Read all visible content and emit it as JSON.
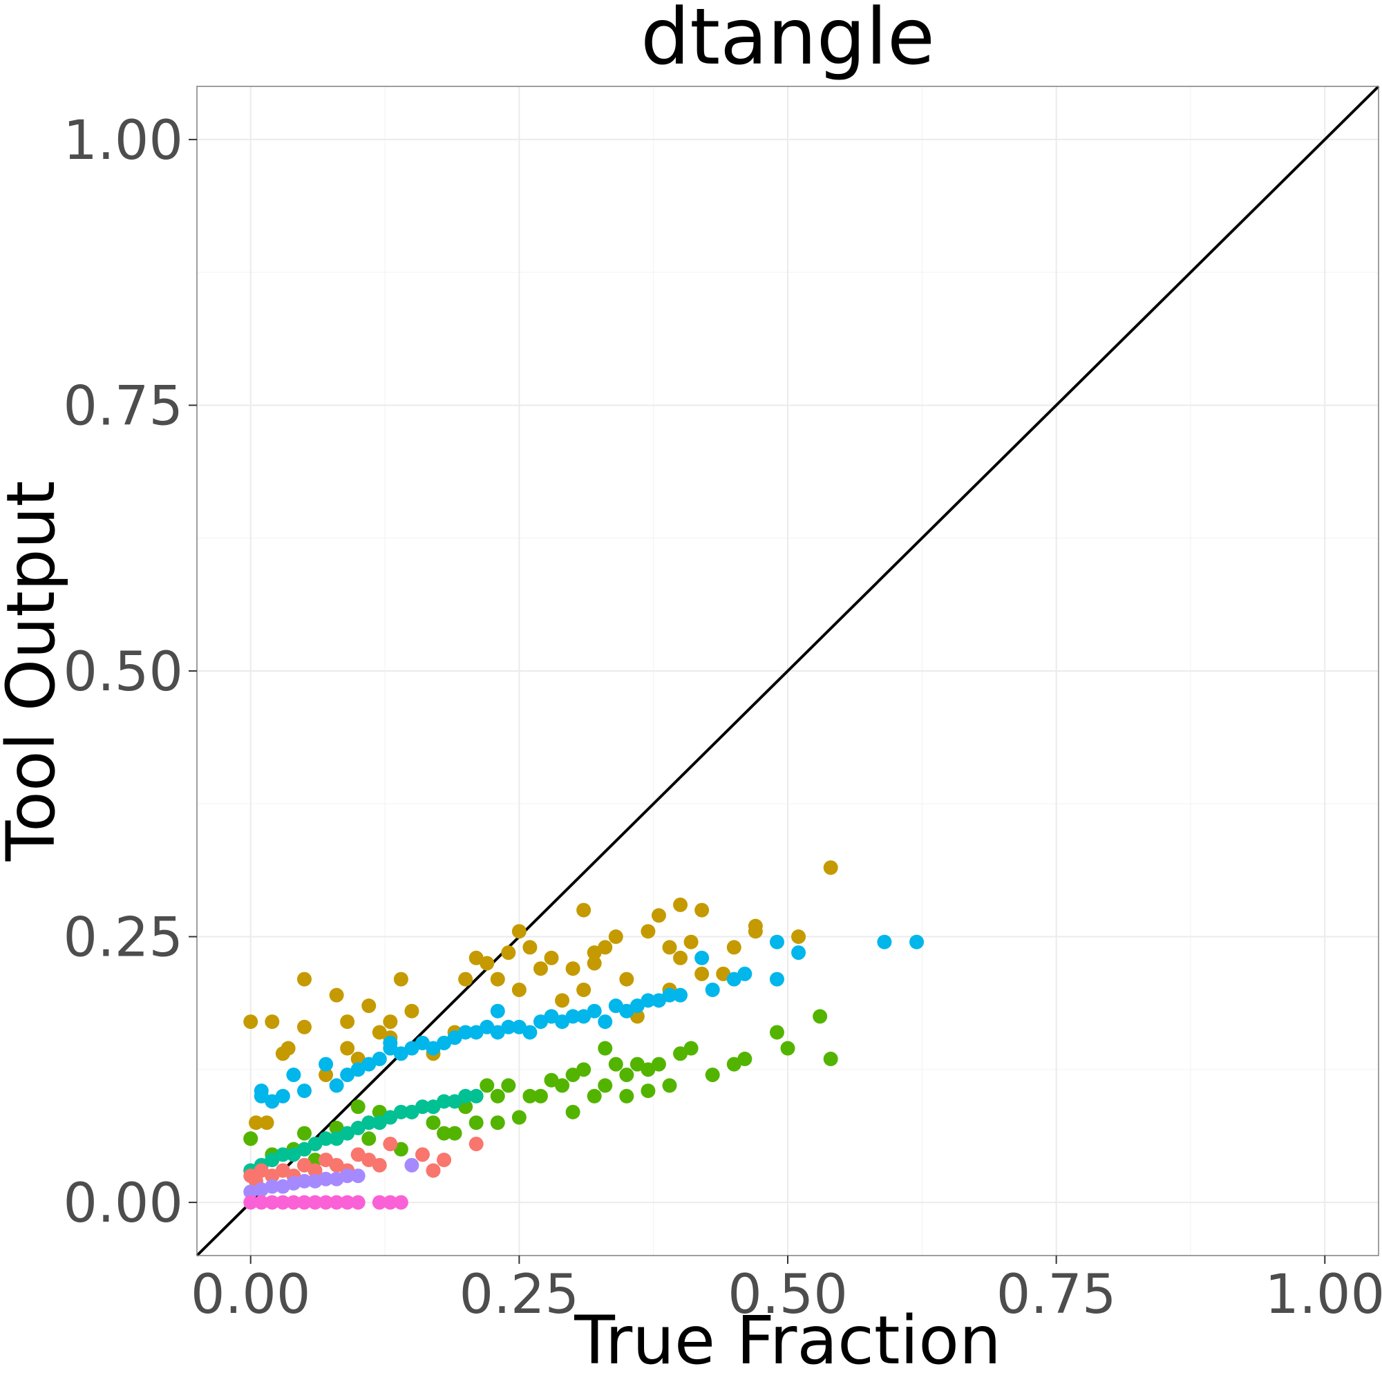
{
  "chart_data": {
    "type": "scatter",
    "title": "dtangle",
    "xlabel": "True Fraction",
    "ylabel": "Tool Output",
    "xlim": [
      -0.05,
      1.05
    ],
    "ylim": [
      -0.05,
      1.05
    ],
    "x_ticks": [
      "0.00",
      "0.25",
      "0.50",
      "0.75",
      "1.00"
    ],
    "y_ticks": [
      "0.00",
      "0.25",
      "0.50",
      "0.75",
      "1.00"
    ],
    "x_tick_values": [
      0,
      0.25,
      0.5,
      0.75,
      1.0
    ],
    "y_tick_values": [
      0,
      0.25,
      0.5,
      0.75,
      1.0
    ],
    "grid": true,
    "legend": "none",
    "reference_line": {
      "slope": 1,
      "intercept": 0,
      "color": "#000000"
    },
    "series": [
      {
        "color": "#C49A00",
        "points": [
          [
            0.0,
            0.17
          ],
          [
            0.02,
            0.17
          ],
          [
            0.0,
            0.06
          ],
          [
            0.005,
            0.075
          ],
          [
            0.015,
            0.075
          ],
          [
            0.03,
            0.14
          ],
          [
            0.035,
            0.145
          ],
          [
            0.05,
            0.21
          ],
          [
            0.05,
            0.165
          ],
          [
            0.07,
            0.12
          ],
          [
            0.08,
            0.195
          ],
          [
            0.09,
            0.145
          ],
          [
            0.09,
            0.17
          ],
          [
            0.1,
            0.135
          ],
          [
            0.11,
            0.185
          ],
          [
            0.12,
            0.16
          ],
          [
            0.13,
            0.17
          ],
          [
            0.13,
            0.155
          ],
          [
            0.14,
            0.21
          ],
          [
            0.15,
            0.18
          ],
          [
            0.17,
            0.14
          ],
          [
            0.19,
            0.16
          ],
          [
            0.2,
            0.21
          ],
          [
            0.21,
            0.23
          ],
          [
            0.22,
            0.225
          ],
          [
            0.23,
            0.21
          ],
          [
            0.24,
            0.235
          ],
          [
            0.25,
            0.255
          ],
          [
            0.25,
            0.2
          ],
          [
            0.26,
            0.24
          ],
          [
            0.27,
            0.22
          ],
          [
            0.28,
            0.175
          ],
          [
            0.28,
            0.23
          ],
          [
            0.29,
            0.19
          ],
          [
            0.3,
            0.22
          ],
          [
            0.31,
            0.275
          ],
          [
            0.31,
            0.2
          ],
          [
            0.32,
            0.235
          ],
          [
            0.32,
            0.225
          ],
          [
            0.33,
            0.24
          ],
          [
            0.34,
            0.25
          ],
          [
            0.35,
            0.21
          ],
          [
            0.36,
            0.175
          ],
          [
            0.37,
            0.255
          ],
          [
            0.38,
            0.27
          ],
          [
            0.39,
            0.2
          ],
          [
            0.39,
            0.24
          ],
          [
            0.4,
            0.23
          ],
          [
            0.4,
            0.28
          ],
          [
            0.41,
            0.245
          ],
          [
            0.42,
            0.215
          ],
          [
            0.42,
            0.275
          ],
          [
            0.44,
            0.215
          ],
          [
            0.45,
            0.24
          ],
          [
            0.47,
            0.26
          ],
          [
            0.47,
            0.255
          ],
          [
            0.51,
            0.25
          ],
          [
            0.54,
            0.315
          ]
        ]
      },
      {
        "color": "#00B6EB",
        "points": [
          [
            0.01,
            0.105
          ],
          [
            0.01,
            0.1
          ],
          [
            0.02,
            0.095
          ],
          [
            0.03,
            0.1
          ],
          [
            0.04,
            0.12
          ],
          [
            0.05,
            0.105
          ],
          [
            0.07,
            0.13
          ],
          [
            0.08,
            0.11
          ],
          [
            0.09,
            0.12
          ],
          [
            0.1,
            0.125
          ],
          [
            0.11,
            0.13
          ],
          [
            0.12,
            0.135
          ],
          [
            0.13,
            0.15
          ],
          [
            0.13,
            0.145
          ],
          [
            0.14,
            0.14
          ],
          [
            0.15,
            0.145
          ],
          [
            0.16,
            0.15
          ],
          [
            0.17,
            0.145
          ],
          [
            0.18,
            0.15
          ],
          [
            0.19,
            0.155
          ],
          [
            0.2,
            0.16
          ],
          [
            0.21,
            0.16
          ],
          [
            0.22,
            0.165
          ],
          [
            0.23,
            0.18
          ],
          [
            0.23,
            0.16
          ],
          [
            0.24,
            0.165
          ],
          [
            0.25,
            0.165
          ],
          [
            0.26,
            0.16
          ],
          [
            0.27,
            0.17
          ],
          [
            0.28,
            0.175
          ],
          [
            0.29,
            0.17
          ],
          [
            0.3,
            0.175
          ],
          [
            0.31,
            0.175
          ],
          [
            0.32,
            0.18
          ],
          [
            0.33,
            0.17
          ],
          [
            0.34,
            0.185
          ],
          [
            0.35,
            0.18
          ],
          [
            0.36,
            0.185
          ],
          [
            0.37,
            0.19
          ],
          [
            0.38,
            0.19
          ],
          [
            0.39,
            0.195
          ],
          [
            0.4,
            0.195
          ],
          [
            0.42,
            0.23
          ],
          [
            0.43,
            0.2
          ],
          [
            0.45,
            0.21
          ],
          [
            0.46,
            0.215
          ],
          [
            0.49,
            0.245
          ],
          [
            0.49,
            0.21
          ],
          [
            0.51,
            0.235
          ],
          [
            0.59,
            0.245
          ],
          [
            0.62,
            0.245
          ]
        ]
      },
      {
        "color": "#53B400",
        "points": [
          [
            0.0,
            0.06
          ],
          [
            0.02,
            0.045
          ],
          [
            0.04,
            0.05
          ],
          [
            0.05,
            0.065
          ],
          [
            0.06,
            0.04
          ],
          [
            0.08,
            0.07
          ],
          [
            0.1,
            0.09
          ],
          [
            0.11,
            0.06
          ],
          [
            0.12,
            0.085
          ],
          [
            0.14,
            0.05
          ],
          [
            0.15,
            0.085
          ],
          [
            0.17,
            0.075
          ],
          [
            0.18,
            0.065
          ],
          [
            0.19,
            0.065
          ],
          [
            0.2,
            0.09
          ],
          [
            0.21,
            0.075
          ],
          [
            0.22,
            0.11
          ],
          [
            0.23,
            0.1
          ],
          [
            0.23,
            0.075
          ],
          [
            0.24,
            0.11
          ],
          [
            0.25,
            0.08
          ],
          [
            0.26,
            0.1
          ],
          [
            0.27,
            0.1
          ],
          [
            0.28,
            0.115
          ],
          [
            0.29,
            0.11
          ],
          [
            0.3,
            0.085
          ],
          [
            0.3,
            0.12
          ],
          [
            0.31,
            0.125
          ],
          [
            0.32,
            0.1
          ],
          [
            0.33,
            0.145
          ],
          [
            0.33,
            0.11
          ],
          [
            0.34,
            0.13
          ],
          [
            0.35,
            0.1
          ],
          [
            0.35,
            0.12
          ],
          [
            0.36,
            0.13
          ],
          [
            0.37,
            0.105
          ],
          [
            0.37,
            0.125
          ],
          [
            0.38,
            0.13
          ],
          [
            0.39,
            0.11
          ],
          [
            0.4,
            0.14
          ],
          [
            0.41,
            0.145
          ],
          [
            0.43,
            0.12
          ],
          [
            0.45,
            0.13
          ],
          [
            0.46,
            0.135
          ],
          [
            0.49,
            0.16
          ],
          [
            0.5,
            0.145
          ],
          [
            0.53,
            0.175
          ],
          [
            0.54,
            0.135
          ]
        ]
      },
      {
        "color": "#00C094",
        "points": [
          [
            0.0,
            0.03
          ],
          [
            0.01,
            0.035
          ],
          [
            0.02,
            0.04
          ],
          [
            0.03,
            0.045
          ],
          [
            0.04,
            0.045
          ],
          [
            0.05,
            0.05
          ],
          [
            0.06,
            0.055
          ],
          [
            0.07,
            0.06
          ],
          [
            0.08,
            0.06
          ],
          [
            0.09,
            0.065
          ],
          [
            0.1,
            0.07
          ],
          [
            0.11,
            0.075
          ],
          [
            0.12,
            0.075
          ],
          [
            0.13,
            0.08
          ],
          [
            0.14,
            0.085
          ],
          [
            0.15,
            0.085
          ],
          [
            0.16,
            0.09
          ],
          [
            0.17,
            0.09
          ],
          [
            0.18,
            0.095
          ],
          [
            0.19,
            0.095
          ],
          [
            0.2,
            0.1
          ],
          [
            0.21,
            0.1
          ]
        ]
      },
      {
        "color": "#F8766D",
        "points": [
          [
            0.0,
            0.025
          ],
          [
            0.005,
            0.02
          ],
          [
            0.01,
            0.03
          ],
          [
            0.02,
            0.025
          ],
          [
            0.03,
            0.03
          ],
          [
            0.04,
            0.025
          ],
          [
            0.05,
            0.035
          ],
          [
            0.06,
            0.03
          ],
          [
            0.07,
            0.04
          ],
          [
            0.08,
            0.035
          ],
          [
            0.09,
            0.03
          ],
          [
            0.1,
            0.045
          ],
          [
            0.11,
            0.04
          ],
          [
            0.12,
            0.035
          ],
          [
            0.13,
            0.055
          ],
          [
            0.16,
            0.045
          ],
          [
            0.17,
            0.03
          ],
          [
            0.18,
            0.04
          ],
          [
            0.21,
            0.055
          ]
        ]
      },
      {
        "color": "#A58AFF",
        "points": [
          [
            0.0,
            0.01
          ],
          [
            0.01,
            0.012
          ],
          [
            0.02,
            0.015
          ],
          [
            0.03,
            0.015
          ],
          [
            0.04,
            0.018
          ],
          [
            0.05,
            0.02
          ],
          [
            0.06,
            0.02
          ],
          [
            0.07,
            0.022
          ],
          [
            0.08,
            0.022
          ],
          [
            0.09,
            0.025
          ],
          [
            0.1,
            0.025
          ],
          [
            0.15,
            0.035
          ]
        ]
      },
      {
        "color": "#FB61D7",
        "points": [
          [
            0.0,
            0.0
          ],
          [
            0.01,
            0.0
          ],
          [
            0.02,
            0.0
          ],
          [
            0.03,
            0.0
          ],
          [
            0.04,
            0.0
          ],
          [
            0.05,
            0.0
          ],
          [
            0.06,
            0.0
          ],
          [
            0.07,
            0.0
          ],
          [
            0.08,
            0.0
          ],
          [
            0.09,
            0.0
          ],
          [
            0.1,
            0.0
          ],
          [
            0.12,
            0.0
          ],
          [
            0.13,
            0.0
          ],
          [
            0.14,
            0.0
          ]
        ]
      }
    ]
  }
}
